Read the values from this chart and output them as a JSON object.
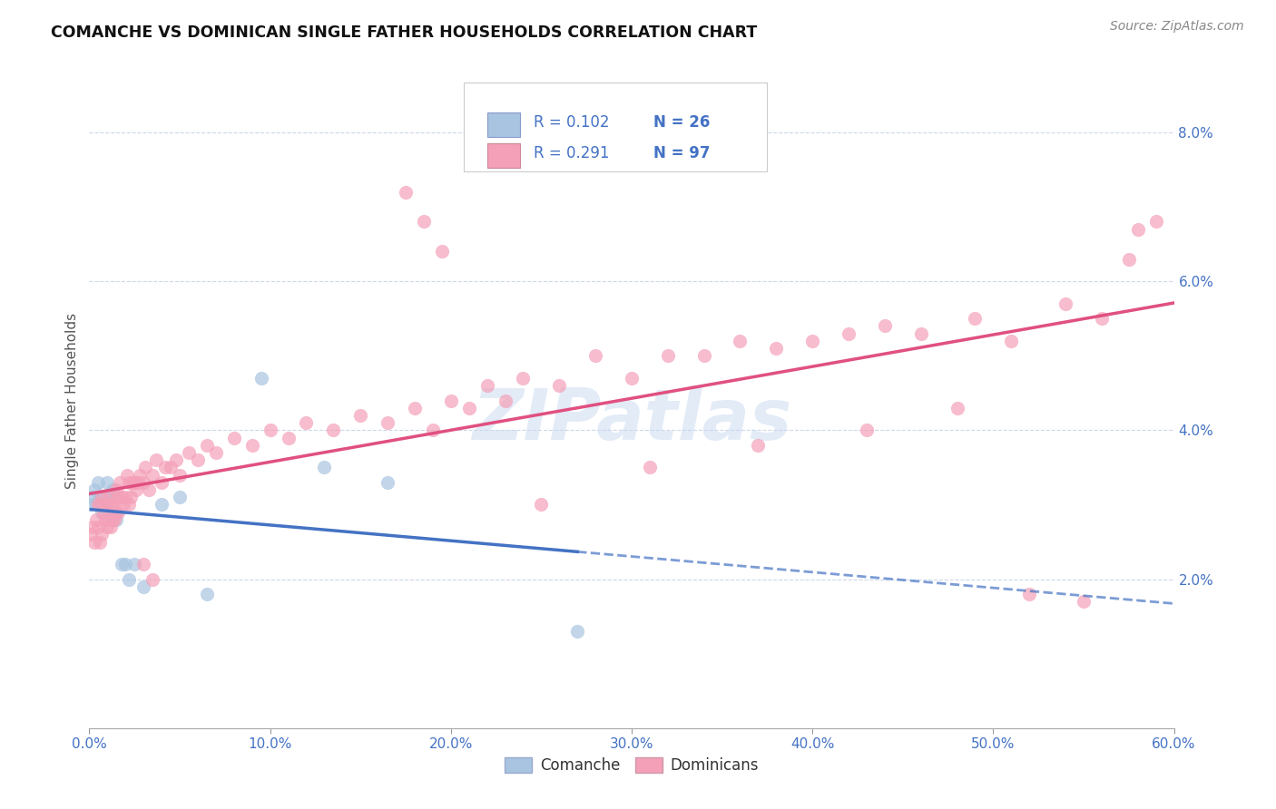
{
  "title": "COMANCHE VS DOMINICAN SINGLE FATHER HOUSEHOLDS CORRELATION CHART",
  "source": "Source: ZipAtlas.com",
  "ylabel": "Single Father Households",
  "xlim": [
    0.0,
    0.6
  ],
  "ylim": [
    0.0,
    0.088
  ],
  "xticks": [
    0.0,
    0.1,
    0.2,
    0.3,
    0.4,
    0.5,
    0.6
  ],
  "yticks": [
    0.0,
    0.02,
    0.04,
    0.06,
    0.08
  ],
  "color_comanche": "#a8c4e0",
  "color_dominican": "#f4a0b8",
  "color_blue_text": "#4472c4",
  "color_pink_line": "#e05080",
  "color_blue_line": "#4472c4",
  "watermark": "ZIPatlas",
  "comanche_x": [
    0.001,
    0.002,
    0.003,
    0.004,
    0.005,
    0.006,
    0.007,
    0.008,
    0.009,
    0.01,
    0.011,
    0.012,
    0.013,
    0.015,
    0.018,
    0.02,
    0.022,
    0.025,
    0.03,
    0.04,
    0.05,
    0.065,
    0.095,
    0.13,
    0.165,
    0.27
  ],
  "comanche_y": [
    0.03,
    0.031,
    0.032,
    0.03,
    0.033,
    0.031,
    0.029,
    0.031,
    0.03,
    0.033,
    0.029,
    0.031,
    0.032,
    0.028,
    0.022,
    0.022,
    0.02,
    0.022,
    0.019,
    0.03,
    0.031,
    0.018,
    0.047,
    0.035,
    0.033,
    0.013
  ],
  "dominican_x": [
    0.001,
    0.002,
    0.003,
    0.004,
    0.005,
    0.005,
    0.006,
    0.006,
    0.007,
    0.007,
    0.008,
    0.009,
    0.01,
    0.01,
    0.011,
    0.011,
    0.012,
    0.012,
    0.013,
    0.014,
    0.014,
    0.015,
    0.015,
    0.016,
    0.016,
    0.017,
    0.018,
    0.019,
    0.02,
    0.021,
    0.022,
    0.022,
    0.023,
    0.024,
    0.025,
    0.026,
    0.027,
    0.028,
    0.03,
    0.031,
    0.033,
    0.035,
    0.037,
    0.04,
    0.042,
    0.045,
    0.048,
    0.05,
    0.055,
    0.06,
    0.065,
    0.07,
    0.08,
    0.09,
    0.1,
    0.11,
    0.12,
    0.135,
    0.15,
    0.165,
    0.18,
    0.19,
    0.2,
    0.21,
    0.22,
    0.23,
    0.24,
    0.26,
    0.28,
    0.3,
    0.32,
    0.34,
    0.36,
    0.38,
    0.4,
    0.42,
    0.44,
    0.46,
    0.49,
    0.51,
    0.54,
    0.56,
    0.03,
    0.035,
    0.175,
    0.185,
    0.195,
    0.25,
    0.31,
    0.37,
    0.43,
    0.48,
    0.52,
    0.55,
    0.575,
    0.58,
    0.59,
    0.595
  ],
  "dominican_y": [
    0.026,
    0.027,
    0.025,
    0.028,
    0.03,
    0.027,
    0.025,
    0.03,
    0.026,
    0.031,
    0.029,
    0.028,
    0.03,
    0.027,
    0.028,
    0.031,
    0.03,
    0.027,
    0.028,
    0.03,
    0.028,
    0.029,
    0.032,
    0.029,
    0.031,
    0.033,
    0.031,
    0.03,
    0.031,
    0.034,
    0.03,
    0.033,
    0.031,
    0.033,
    0.033,
    0.032,
    0.033,
    0.034,
    0.033,
    0.035,
    0.032,
    0.034,
    0.036,
    0.033,
    0.035,
    0.035,
    0.036,
    0.034,
    0.037,
    0.036,
    0.038,
    0.037,
    0.039,
    0.038,
    0.04,
    0.039,
    0.041,
    0.04,
    0.042,
    0.041,
    0.043,
    0.04,
    0.044,
    0.043,
    0.046,
    0.044,
    0.047,
    0.046,
    0.05,
    0.047,
    0.05,
    0.05,
    0.052,
    0.051,
    0.052,
    0.053,
    0.054,
    0.053,
    0.055,
    0.052,
    0.057,
    0.055,
    0.022,
    0.02,
    0.072,
    0.068,
    0.064,
    0.03,
    0.035,
    0.038,
    0.04,
    0.043,
    0.018,
    0.017,
    0.063,
    0.067,
    0.068,
    0.069
  ]
}
